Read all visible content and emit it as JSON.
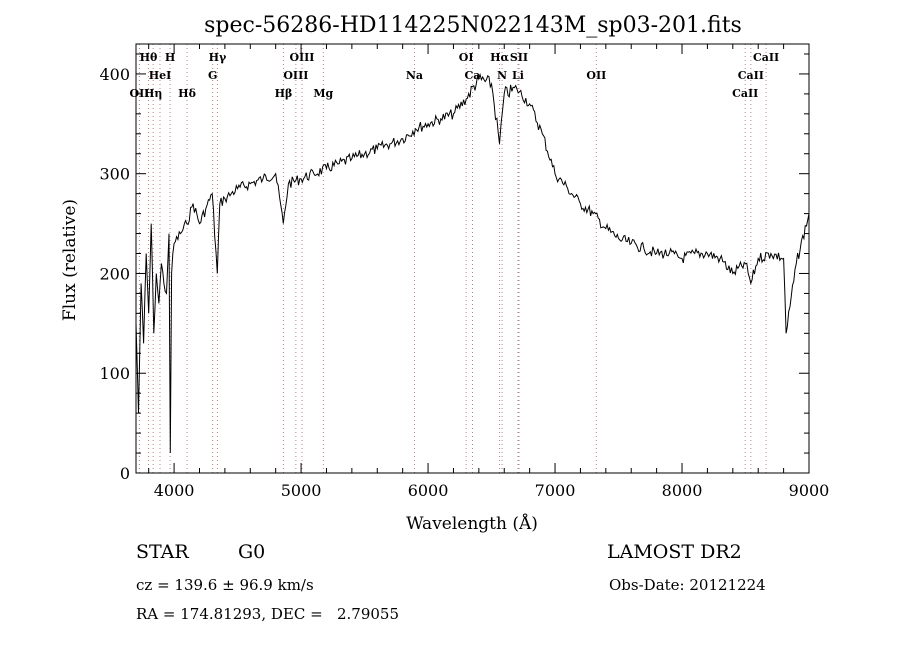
{
  "chart_data": {
    "type": "line",
    "title": "spec-56286-HD114225N022143M_sp03-201.fits",
    "xlabel": "Wavelength (Å)",
    "ylabel": "Flux (relative)",
    "xlim": [
      3700,
      9000
    ],
    "ylim": [
      0,
      430
    ],
    "x_ticks": [
      4000,
      5000,
      6000,
      7000,
      8000,
      9000
    ],
    "y_ticks": [
      0,
      100,
      200,
      300,
      400
    ],
    "grid": false,
    "series": [
      {
        "x": [
          3700,
          3720,
          3740,
          3760,
          3780,
          3800,
          3820,
          3840,
          3860,
          3880,
          3900,
          3920,
          3940,
          3960,
          3970,
          3980,
          4000,
          4050,
          4100,
          4150,
          4200,
          4250,
          4300,
          4340,
          4360,
          4400,
          4450,
          4500,
          4600,
          4700,
          4800,
          4860,
          4900,
          5000,
          5100,
          5200,
          5300,
          5400,
          5500,
          5600,
          5700,
          5800,
          5900,
          6000,
          6100,
          6200,
          6300,
          6400,
          6500,
          6563,
          6600,
          6700,
          6800,
          6900,
          7000,
          7100,
          7200,
          7300,
          7400,
          7500,
          7600,
          7700,
          7800,
          7900,
          8000,
          8100,
          8200,
          8300,
          8400,
          8500,
          8542,
          8600,
          8700,
          8800,
          8820,
          8900,
          9000
        ],
        "y": [
          150,
          60,
          190,
          130,
          220,
          160,
          250,
          140,
          200,
          170,
          210,
          190,
          180,
          240,
          20,
          200,
          230,
          240,
          250,
          270,
          250,
          265,
          280,
          200,
          270,
          275,
          280,
          285,
          290,
          295,
          300,
          250,
          290,
          295,
          300,
          305,
          310,
          315,
          320,
          325,
          330,
          335,
          345,
          350,
          355,
          360,
          375,
          395,
          390,
          330,
          380,
          385,
          370,
          340,
          300,
          285,
          270,
          260,
          245,
          235,
          230,
          225,
          220,
          220,
          215,
          220,
          220,
          215,
          200,
          210,
          190,
          215,
          220,
          215,
          140,
          210,
          260
        ]
      }
    ],
    "spectral_lines": [
      {
        "name": "Hθ",
        "wl": 3798,
        "row": 0,
        "color": "#000000"
      },
      {
        "name": "H",
        "wl": 3968,
        "row": 0,
        "color": "#000000"
      },
      {
        "name": "Hγ",
        "wl": 4341,
        "row": 0,
        "color": "#000000"
      },
      {
        "name": "OIII",
        "wl": 5007,
        "row": 0,
        "color": "#000000"
      },
      {
        "name": "OI",
        "wl": 6300,
        "row": 0,
        "color": "#000000"
      },
      {
        "name": "Hα",
        "wl": 6563,
        "row": 0,
        "color": "#000000"
      },
      {
        "name": "SII",
        "wl": 6716,
        "row": 0,
        "color": "#000000"
      },
      {
        "name": "CaII",
        "wl": 8662,
        "row": 0,
        "color": "#000000"
      },
      {
        "name": "HeI",
        "wl": 3889,
        "row": 1,
        "color": "#000000"
      },
      {
        "name": "G",
        "wl": 4304,
        "row": 1,
        "color": "#000000"
      },
      {
        "name": "OIII",
        "wl": 4959,
        "row": 1,
        "color": "#000000"
      },
      {
        "name": "Na",
        "wl": 5893,
        "row": 1,
        "color": "#000000"
      },
      {
        "name": "Ca",
        "wl": 6350,
        "row": 1,
        "color": "#000000"
      },
      {
        "name": "N",
        "wl": 6583,
        "row": 1,
        "color": "#000000"
      },
      {
        "name": "Li",
        "wl": 6708,
        "row": 1,
        "color": "#000000"
      },
      {
        "name": "OII",
        "wl": 7325,
        "row": 1,
        "color": "#000000"
      },
      {
        "name": "CaII",
        "wl": 8542,
        "row": 1,
        "color": "#000000"
      },
      {
        "name": "OII",
        "wl": 3727,
        "row": 2,
        "color": "#000000"
      },
      {
        "name": "Hη",
        "wl": 3835,
        "row": 2,
        "color": "#000000"
      },
      {
        "name": "Hδ",
        "wl": 4102,
        "row": 2,
        "color": "#000000"
      },
      {
        "name": "Hβ",
        "wl": 4861,
        "row": 2,
        "color": "#000000"
      },
      {
        "name": "Mg",
        "wl": 5175,
        "row": 2,
        "color": "#000000"
      },
      {
        "name": "CaII",
        "wl": 8498,
        "row": 2,
        "color": "#000000"
      }
    ],
    "marker_color": "#c08080"
  },
  "info": {
    "object_class": "STAR",
    "subclass": "G0",
    "survey": "LAMOST DR2",
    "cz": "cz = 139.6 ± 96.9 km/s",
    "obs_date": "Obs-Date: 20121224",
    "coords": "RA = 174.81293, DEC =   2.79055"
  }
}
